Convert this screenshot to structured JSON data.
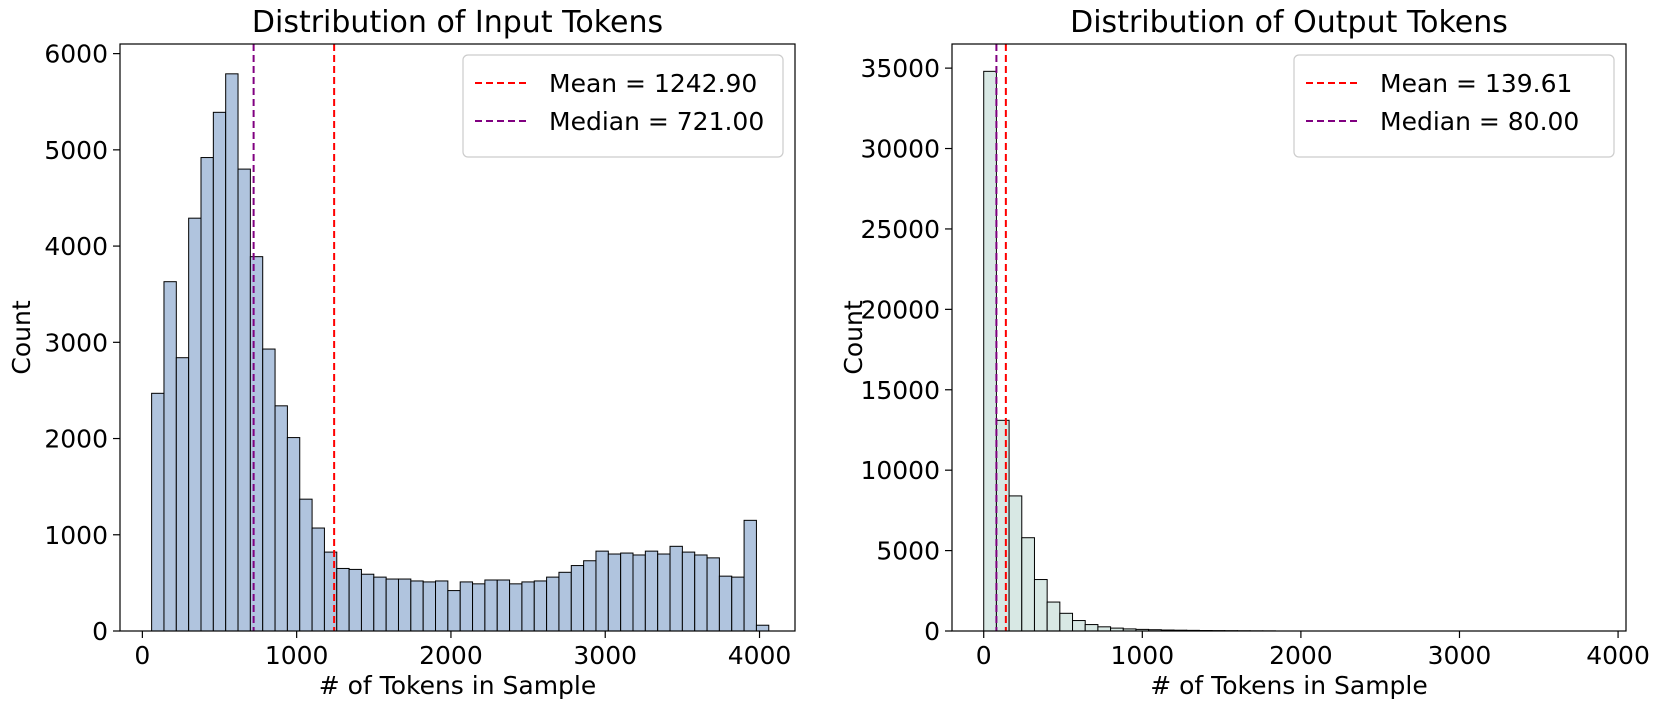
{
  "chart_data": [
    {
      "type": "bar",
      "subtype": "histogram",
      "title": "Distribution of Input Tokens",
      "xlabel": "# of Tokens in Sample",
      "ylabel": "Count",
      "xlim": [
        -145,
        4230
      ],
      "ylim": [
        0,
        6100
      ],
      "xticks": [
        0,
        1000,
        2000,
        3000,
        4000
      ],
      "yticks": [
        0,
        1000,
        2000,
        3000,
        4000,
        5000,
        6000
      ],
      "bin_start": 60,
      "bin_width": 80,
      "values": [
        2470,
        3630,
        2840,
        4290,
        4920,
        5390,
        5790,
        4800,
        3890,
        2930,
        2340,
        2010,
        1370,
        1070,
        820,
        650,
        640,
        590,
        560,
        540,
        540,
        520,
        510,
        520,
        420,
        510,
        490,
        530,
        530,
        490,
        510,
        520,
        560,
        610,
        680,
        730,
        830,
        800,
        810,
        790,
        830,
        800,
        880,
        820,
        790,
        760,
        570,
        560,
        1150,
        60
      ],
      "bar_color": "#b0c4de",
      "grid": false,
      "legend_position": "upper right",
      "lines": [
        {
          "label": "Mean = 1242.90",
          "x": 1242.9,
          "color": "#ff0000"
        },
        {
          "label": "Median = 721.00",
          "x": 721.0,
          "color": "#800080"
        }
      ]
    },
    {
      "type": "bar",
      "subtype": "histogram",
      "title": "Distribution of Output Tokens",
      "xlabel": "# of Tokens in Sample",
      "ylabel": "Count",
      "xlim": [
        -200,
        4050
      ],
      "ylim": [
        0,
        36500
      ],
      "xticks": [
        0,
        1000,
        2000,
        3000,
        4000
      ],
      "yticks": [
        0,
        5000,
        10000,
        15000,
        20000,
        25000,
        30000,
        35000
      ],
      "bin_start": 0,
      "bin_width": 80,
      "values": [
        34800,
        13100,
        8400,
        5800,
        3200,
        1800,
        1100,
        650,
        400,
        260,
        180,
        130,
        100,
        80,
        60,
        50,
        40,
        30,
        25,
        20,
        15,
        10,
        8
      ],
      "bar_color": "#d8e8e4",
      "grid": false,
      "legend_position": "upper right",
      "lines": [
        {
          "label": "Mean = 139.61",
          "x": 139.61,
          "color": "#ff0000"
        },
        {
          "label": "Median = 80.00",
          "x": 80.0,
          "color": "#800080"
        }
      ]
    }
  ]
}
